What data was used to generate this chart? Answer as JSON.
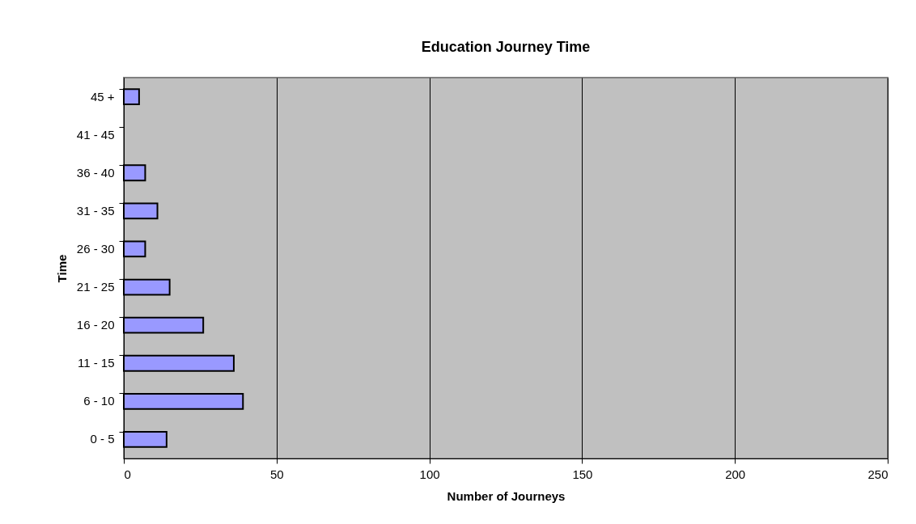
{
  "chart_data": {
    "type": "bar",
    "orientation": "horizontal",
    "title": "Education Journey Time",
    "xlabel": "Number of Journeys",
    "ylabel": "Time",
    "categories": [
      "45 +",
      "41 - 45",
      "36 - 40",
      "31 - 35",
      "26 - 30",
      "21 - 25",
      "16 - 20",
      "11 - 15",
      "6 - 10",
      "0 - 5"
    ],
    "values": [
      5,
      0,
      7,
      11,
      7,
      15,
      26,
      36,
      39,
      14
    ],
    "color": "#9999ff",
    "xlim": [
      0,
      250
    ],
    "xticks": [
      0,
      50,
      100,
      150,
      200,
      250
    ],
    "grid": "x"
  }
}
